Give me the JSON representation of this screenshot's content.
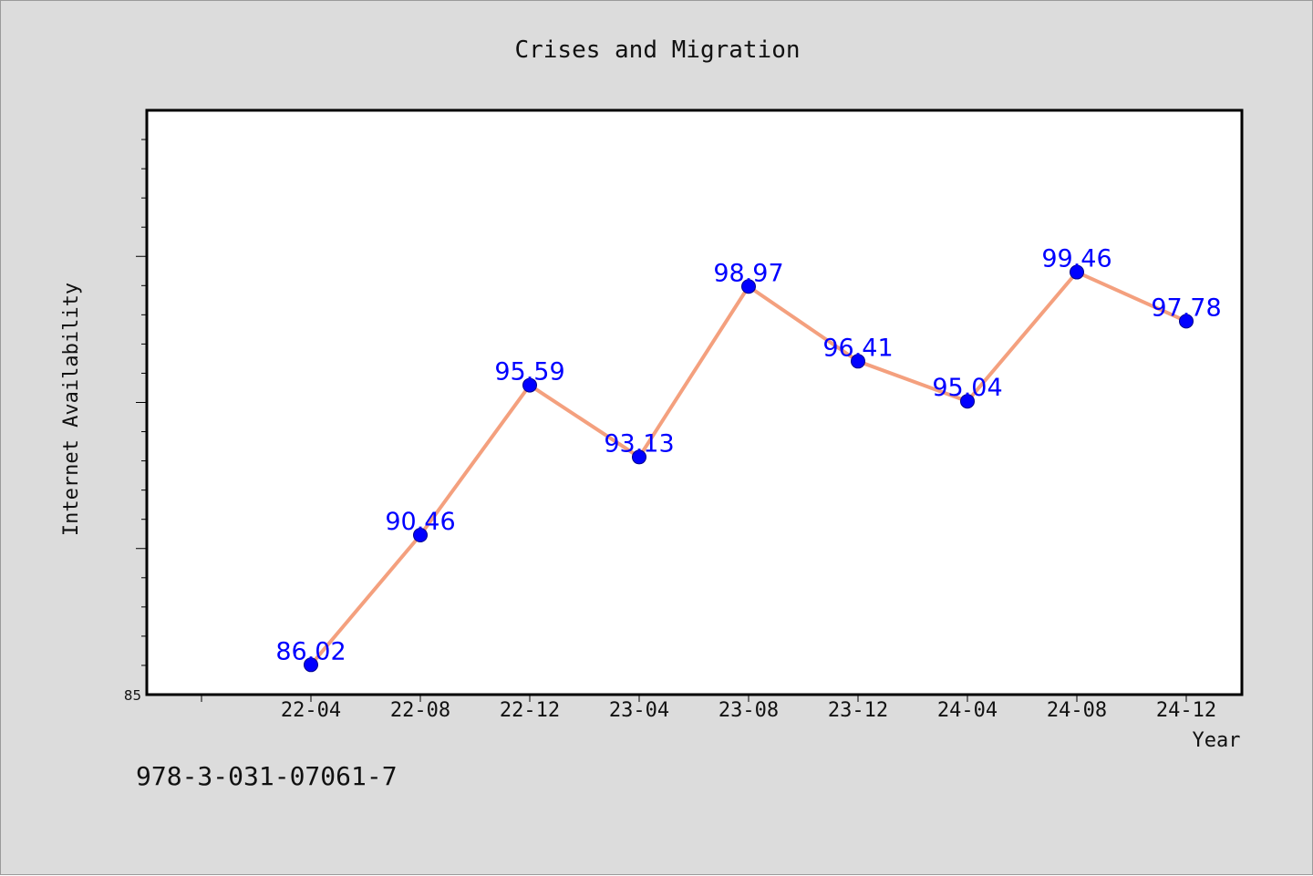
{
  "footer": {
    "code": "978-3-031-07061-7"
  },
  "chart_data": {
    "type": "line",
    "title": "Crises and Migration",
    "xlabel": "Year",
    "ylabel": "Internet Availability",
    "categories": [
      "22-04",
      "22-08",
      "22-12",
      "23-04",
      "23-08",
      "23-12",
      "24-04",
      "24-08",
      "24-12"
    ],
    "values": [
      86.02,
      90.46,
      95.59,
      93.13,
      98.97,
      96.41,
      95.04,
      99.46,
      97.78
    ],
    "data_labels": [
      "86.02",
      "90.46",
      "95.59",
      "93.13",
      "98.97",
      "96.41",
      "95.04",
      "99.46",
      "97.78"
    ],
    "y_tick_labels": [
      "85"
    ],
    "ylim": [
      85,
      105
    ],
    "grid": false,
    "legend": "none",
    "colors": {
      "line": "#f4a07e",
      "marker": "#0000ff",
      "data_label": "#0000ff",
      "background": "#dcdcdc",
      "plot_background": "#ffffff"
    }
  }
}
